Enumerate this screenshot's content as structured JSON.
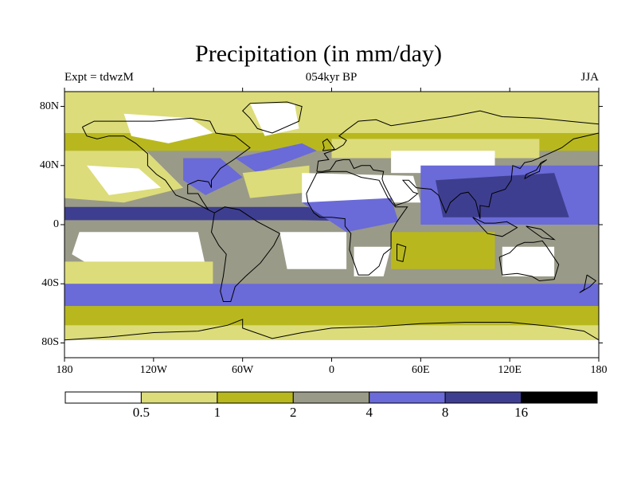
{
  "map": {
    "title": "Precipitation (in mm/day)",
    "experiment_label": "Expt = tdwzM",
    "period_label": "054kyr BP",
    "season_label": "JJA",
    "lat_ticks": [
      "80N",
      "40N",
      "0",
      "40S",
      "80S"
    ],
    "lat_tick_values": [
      80,
      40,
      0,
      -40,
      -80
    ],
    "lon_ticks": [
      "180",
      "120W",
      "60W",
      "0",
      "60E",
      "120E",
      "180"
    ],
    "lon_tick_values": [
      -180,
      -120,
      -60,
      0,
      60,
      120,
      180
    ],
    "lat_range": [
      -90,
      90
    ],
    "lon_range": [
      -180,
      180
    ]
  },
  "colorbar": {
    "boundaries": [
      "0.5",
      "1",
      "2",
      "4",
      "8",
      "16"
    ],
    "colors": [
      "#ffffff",
      "#dcdc7a",
      "#b8b81e",
      "#9a9a88",
      "#6a6ad8",
      "#3e3e90",
      "#000000"
    ]
  }
}
